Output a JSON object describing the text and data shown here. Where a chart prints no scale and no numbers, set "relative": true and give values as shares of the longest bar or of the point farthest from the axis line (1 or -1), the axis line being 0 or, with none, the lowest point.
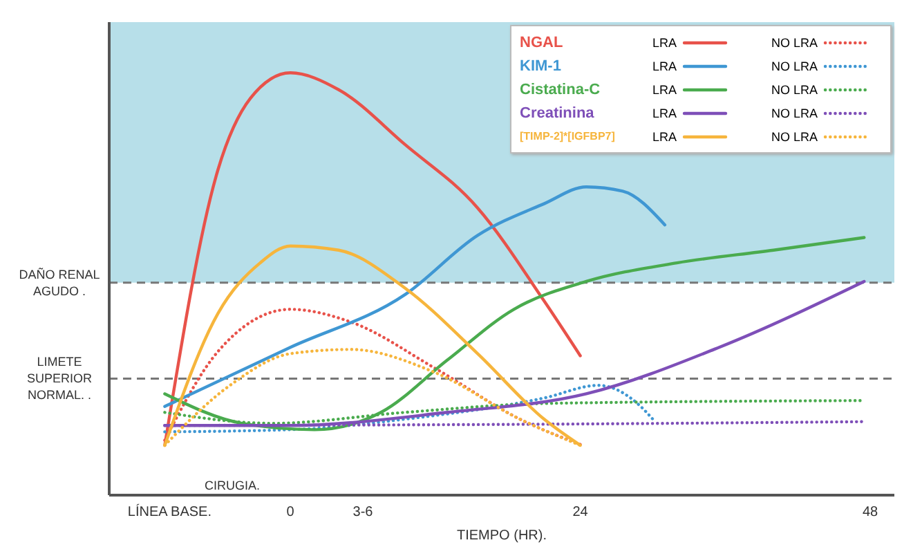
{
  "chart_data": {
    "type": "line",
    "relative": true,
    "xlabel": "TIEMPO (HR).",
    "xlim": [
      -15,
      50
    ],
    "xticks": [
      {
        "value": -10,
        "label": "LÍNEA BASE."
      },
      0,
      {
        "value": 6,
        "label": "3-6"
      },
      24,
      48
    ],
    "legend": "top right",
    "grid": false,
    "annotations": [
      "CIRUGIA.",
      "NGAL",
      "KIM-1",
      "Cistatina-C",
      "Creatinina",
      "[TIMP-2]*[IGFBP7]"
    ],
    "ref_lines": [
      {
        "axis": "y",
        "value": 0.503,
        "label": "DAÑO RENAL AGUDO .",
        "color": "#777777",
        "line_style": "dashed"
      },
      {
        "axis": "y",
        "value": 0.276,
        "label": "LIMETE SUPERIOR NORMAL. .",
        "color": "#777777",
        "line_style": "dashed"
      }
    ],
    "bands": [
      {
        "axis": "y",
        "from": 0.503,
        "to": 1.12,
        "color": "#9fd4e2"
      }
    ],
    "series": [
      {
        "name": "LRA",
        "color": "#e8524a",
        "line_style": "solid",
        "x": [
          -10.4,
          -6,
          -3.3,
          0,
          4,
          9.5,
          15.5,
          21,
          24
        ],
        "values": [
          0.118,
          0.77,
          0.94,
          1.0,
          0.96,
          0.83,
          0.68,
          0.46,
          0.33
        ]
      },
      {
        "name": "NO LRA",
        "color": "#e8524a",
        "line_style": "dotted",
        "x": [
          -10.4,
          -6,
          0,
          5,
          12,
          19,
          24
        ],
        "values": [
          0.13,
          0.34,
          0.44,
          0.41,
          0.3,
          0.18,
          0.12
        ]
      },
      {
        "name": "LRA",
        "color": "#3f97d3",
        "line_style": "solid",
        "x": [
          -10.4,
          0,
          9.5,
          15.5,
          21,
          24.5,
          27.5,
          31
        ],
        "values": [
          0.21,
          0.35,
          0.475,
          0.615,
          0.69,
          0.73,
          0.72,
          0.64
        ]
      },
      {
        "name": "NO LRA",
        "color": "#3f97d3",
        "line_style": "dotted",
        "x": [
          -10.4,
          0,
          9.5,
          21,
          25.5,
          29,
          30
        ],
        "values": [
          0.15,
          0.155,
          0.18,
          0.23,
          0.26,
          0.21,
          0.18
        ]
      },
      {
        "name": "LRA",
        "color": "#4aab4e",
        "line_style": "solid",
        "x": [
          -10.4,
          -4,
          2,
          7.5,
          13,
          18.5,
          24.5,
          32,
          40,
          47.5
        ],
        "values": [
          0.24,
          0.17,
          0.155,
          0.196,
          0.32,
          0.44,
          0.506,
          0.55,
          0.58,
          0.61
        ]
      },
      {
        "name": "NO LRA",
        "color": "#4aab4e",
        "line_style": "dotted",
        "x": [
          -10.4,
          -1.5,
          9.5,
          21,
          47.5
        ],
        "values": [
          0.196,
          0.17,
          0.196,
          0.217,
          0.224
        ]
      },
      {
        "name": "LRA",
        "color": "#7e4fb8",
        "line_style": "solid",
        "x": [
          -10.4,
          0,
          13,
          24.5,
          35.5,
          47.5
        ],
        "values": [
          0.165,
          0.165,
          0.196,
          0.24,
          0.35,
          0.506
        ]
      },
      {
        "name": "NO LRA",
        "color": "#7e4fb8",
        "line_style": "dotted",
        "x": [
          -10.4,
          21,
          47.5
        ],
        "values": [
          0.165,
          0.168,
          0.174
        ]
      },
      {
        "name": "LRA",
        "color": "#f6b53c",
        "line_style": "solid",
        "x": [
          -10.4,
          -6,
          -2.5,
          0,
          4,
          9.5,
          15.5,
          21,
          24
        ],
        "values": [
          0.118,
          0.43,
          0.55,
          0.59,
          0.58,
          0.49,
          0.335,
          0.18,
          0.118
        ]
      },
      {
        "name": "NO LRA",
        "color": "#f6b53c",
        "line_style": "dotted",
        "x": [
          -10.4,
          -5,
          0,
          5,
          12,
          19,
          24
        ],
        "values": [
          0.118,
          0.26,
          0.335,
          0.345,
          0.29,
          0.18,
          0.118
        ]
      }
    ]
  }
}
